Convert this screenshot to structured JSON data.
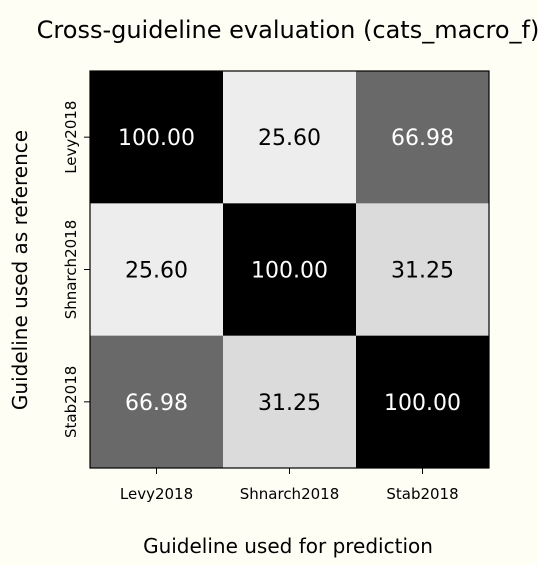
{
  "chart_data": {
    "type": "heatmap",
    "title": "Cross-guideline evaluation (cats_macro_f)",
    "xlabel": "Guideline used for prediction",
    "ylabel": "Guideline used as reference",
    "x_categories": [
      "Levy2018",
      "Shnarch2018",
      "Stab2018"
    ],
    "y_categories": [
      "Levy2018",
      "Shnarch2018",
      "Stab2018"
    ],
    "values": [
      [
        100.0,
        25.6,
        66.98
      ],
      [
        25.6,
        100.0,
        31.25
      ],
      [
        66.98,
        31.25,
        100.0
      ]
    ],
    "value_format": "0.00",
    "colormap": "gray_reversed",
    "vmin": 20,
    "vmax": 100,
    "text_colors": {
      "dark_cell": "#ffffff",
      "light_cell": "#000000"
    },
    "grid": false
  }
}
